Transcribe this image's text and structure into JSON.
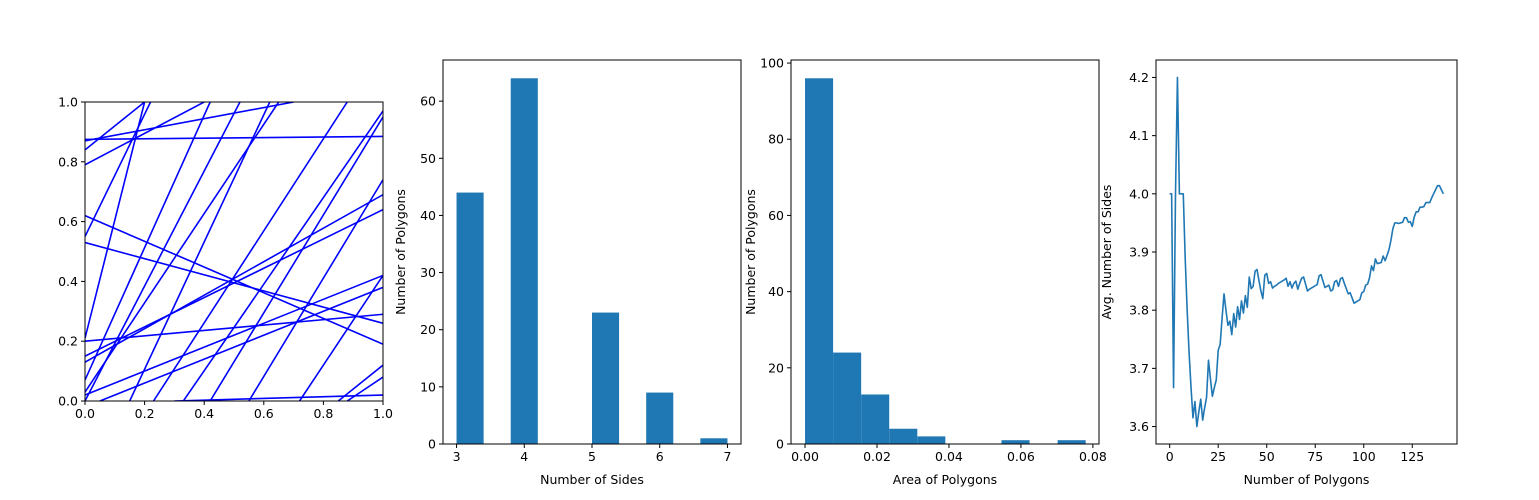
{
  "chart_data": [
    {
      "type": "line",
      "name": "random-lines-in-unit-square",
      "xlabel": "",
      "ylabel": "",
      "xlim": [
        0,
        1
      ],
      "ylim": [
        0,
        1
      ],
      "xticks": [
        "0.0",
        "0.2",
        "0.4",
        "0.6",
        "0.8",
        "1.0"
      ],
      "yticks": [
        "0.0",
        "0.2",
        "0.4",
        "0.6",
        "0.8",
        "1.0"
      ],
      "line_color": "#0000ff",
      "segments": [
        [
          [
            0.0,
            0.875
          ],
          [
            1.0,
            0.885
          ]
        ],
        [
          [
            0.0,
            0.79
          ],
          [
            0.4,
            1.0
          ]
        ],
        [
          [
            0.0,
            0.84
          ],
          [
            0.2,
            1.0
          ]
        ],
        [
          [
            0.0,
            0.87
          ],
          [
            0.7,
            1.0
          ]
        ],
        [
          [
            0.0,
            0.62
          ],
          [
            1.0,
            0.19
          ]
        ],
        [
          [
            0.0,
            0.53
          ],
          [
            1.0,
            0.26
          ]
        ],
        [
          [
            0.0,
            0.55
          ],
          [
            0.22,
            1.0
          ]
        ],
        [
          [
            0.0,
            0.21
          ],
          [
            0.2,
            1.0
          ]
        ],
        [
          [
            0.0,
            0.2
          ],
          [
            1.0,
            0.29
          ]
        ],
        [
          [
            0.0,
            0.13
          ],
          [
            1.0,
            0.69
          ]
        ],
        [
          [
            0.0,
            0.15
          ],
          [
            1.0,
            0.64
          ]
        ],
        [
          [
            0.0,
            0.07
          ],
          [
            0.42,
            1.0
          ]
        ],
        [
          [
            0.0,
            0.03
          ],
          [
            0.65,
            1.0
          ]
        ],
        [
          [
            0.0,
            0.0
          ],
          [
            0.52,
            1.0
          ]
        ],
        [
          [
            0.0,
            0.02
          ],
          [
            1.0,
            0.42
          ]
        ],
        [
          [
            0.05,
            0.0
          ],
          [
            1.0,
            0.38
          ]
        ],
        [
          [
            0.15,
            0.0
          ],
          [
            0.62,
            1.0
          ]
        ],
        [
          [
            0.23,
            0.0
          ],
          [
            0.88,
            1.0
          ]
        ],
        [
          [
            0.33,
            0.0
          ],
          [
            1.0,
            0.97
          ]
        ],
        [
          [
            0.42,
            0.0
          ],
          [
            1.0,
            0.95
          ]
        ],
        [
          [
            0.55,
            0.0
          ],
          [
            1.0,
            0.74
          ]
        ],
        [
          [
            0.72,
            0.0
          ],
          [
            1.0,
            0.42
          ]
        ],
        [
          [
            0.85,
            0.0
          ],
          [
            1.0,
            0.12
          ]
        ],
        [
          [
            0.3,
            0.0
          ],
          [
            1.0,
            0.02
          ]
        ],
        [
          [
            0.88,
            0.0
          ],
          [
            1.0,
            0.08
          ]
        ]
      ]
    },
    {
      "type": "bar",
      "name": "sides-histogram",
      "xlabel": "Number of Sides",
      "ylabel": "Number of Polygons",
      "xlim": [
        2.8,
        7.2
      ],
      "ylim": [
        0,
        67.2
      ],
      "xticks": [
        "3",
        "4",
        "5",
        "6",
        "7"
      ],
      "yticks": [
        "0",
        "10",
        "20",
        "30",
        "40",
        "50",
        "60"
      ],
      "bar_color": "#1f77b4",
      "bins": [
        3.0,
        3.4,
        3.8,
        4.2,
        4.6,
        5.0,
        5.4,
        5.8,
        6.2,
        6.6,
        7.0
      ],
      "counts": [
        44,
        0,
        64,
        0,
        0,
        23,
        0,
        9,
        0,
        1
      ]
    },
    {
      "type": "bar",
      "name": "area-histogram",
      "xlabel": "Area of Polygons",
      "ylabel": "Number of Polygons",
      "xlim": [
        -0.0039,
        0.0817
      ],
      "ylim": [
        0,
        100.8
      ],
      "xticks": [
        "0.00",
        "0.02",
        "0.04",
        "0.06",
        "0.08"
      ],
      "yticks": [
        "0",
        "20",
        "40",
        "60",
        "80",
        "100"
      ],
      "bar_color": "#1f77b4",
      "bins": [
        0.0,
        0.0078,
        0.0156,
        0.0234,
        0.0312,
        0.039,
        0.0468,
        0.0546,
        0.0624,
        0.0702,
        0.078
      ],
      "counts": [
        96,
        24,
        13,
        4,
        2,
        0,
        0,
        1,
        0,
        1
      ]
    },
    {
      "type": "line",
      "name": "avg-sides-vs-polygons",
      "xlabel": "Number of Polygons",
      "ylabel": "Avg. Number of Sides",
      "xlim": [
        -7.05,
        148.05
      ],
      "ylim": [
        3.57,
        4.23
      ],
      "xticks": [
        "0",
        "25",
        "50",
        "75",
        "100",
        "125"
      ],
      "yticks": [
        "3.6",
        "3.7",
        "3.8",
        "3.9",
        "4.0",
        "4.1",
        "4.2"
      ],
      "line_color": "#1f77b4",
      "points": [
        [
          0,
          4.0
        ],
        [
          1,
          4.0
        ],
        [
          2,
          3.667
        ],
        [
          3,
          4.0
        ],
        [
          4,
          4.2
        ],
        [
          5,
          4.0
        ],
        [
          6,
          4.0
        ],
        [
          7,
          4.0
        ],
        [
          8,
          3.889
        ],
        [
          9,
          3.8
        ],
        [
          10,
          3.727
        ],
        [
          11,
          3.667
        ],
        [
          12,
          3.615
        ],
        [
          13,
          3.643
        ],
        [
          14,
          3.6
        ],
        [
          15,
          3.625
        ],
        [
          16,
          3.647
        ],
        [
          17,
          3.611
        ],
        [
          18,
          3.632
        ],
        [
          19,
          3.65
        ],
        [
          20,
          3.714
        ],
        [
          21,
          3.682
        ],
        [
          22,
          3.652
        ],
        [
          23,
          3.667
        ],
        [
          24,
          3.68
        ],
        [
          25,
          3.731
        ],
        [
          26,
          3.741
        ],
        [
          27,
          3.786
        ],
        [
          28,
          3.828
        ],
        [
          29,
          3.8
        ],
        [
          30,
          3.774
        ],
        [
          31,
          3.781
        ],
        [
          32,
          3.758
        ],
        [
          33,
          3.794
        ],
        [
          34,
          3.771
        ],
        [
          35,
          3.806
        ],
        [
          36,
          3.784
        ],
        [
          37,
          3.816
        ],
        [
          38,
          3.795
        ],
        [
          39,
          3.825
        ],
        [
          40,
          3.805
        ],
        [
          41,
          3.857
        ],
        [
          42,
          3.837
        ],
        [
          43,
          3.841
        ],
        [
          44,
          3.867
        ],
        [
          45,
          3.87
        ],
        [
          46,
          3.851
        ],
        [
          47,
          3.833
        ],
        [
          48,
          3.82
        ],
        [
          49,
          3.86
        ],
        [
          50,
          3.863
        ],
        [
          51,
          3.846
        ],
        [
          52,
          3.849
        ],
        [
          53,
          3.838
        ],
        [
          54,
          3.841
        ],
        [
          55,
          3.843
        ],
        [
          56,
          3.846
        ],
        [
          57,
          3.848
        ],
        [
          58,
          3.85
        ],
        [
          59,
          3.852
        ],
        [
          60,
          3.855
        ],
        [
          61,
          3.841
        ],
        [
          62,
          3.849
        ],
        [
          63,
          3.838
        ],
        [
          64,
          3.846
        ],
        [
          65,
          3.85
        ],
        [
          66,
          3.836
        ],
        [
          67,
          3.846
        ],
        [
          68,
          3.855
        ],
        [
          69,
          3.857
        ],
        [
          70,
          3.845
        ],
        [
          71,
          3.833
        ],
        [
          72,
          3.836
        ],
        [
          73,
          3.838
        ],
        [
          74,
          3.84
        ],
        [
          75,
          3.842
        ],
        [
          76,
          3.844
        ],
        [
          77,
          3.859
        ],
        [
          78,
          3.861
        ],
        [
          79,
          3.85
        ],
        [
          80,
          3.839
        ],
        [
          81,
          3.841
        ],
        [
          82,
          3.843
        ],
        [
          83,
          3.833
        ],
        [
          84,
          3.835
        ],
        [
          85,
          3.849
        ],
        [
          86,
          3.851
        ],
        [
          87,
          3.841
        ],
        [
          88,
          3.854
        ],
        [
          89,
          3.856
        ],
        [
          90,
          3.846
        ],
        [
          91,
          3.837
        ],
        [
          92,
          3.828
        ],
        [
          93,
          3.83
        ],
        [
          94,
          3.821
        ],
        [
          95,
          3.812
        ],
        [
          96,
          3.814
        ],
        [
          97,
          3.816
        ],
        [
          98,
          3.818
        ],
        [
          99,
          3.83
        ],
        [
          100,
          3.832
        ],
        [
          101,
          3.843
        ],
        [
          102,
          3.845
        ],
        [
          103,
          3.856
        ],
        [
          104,
          3.876
        ],
        [
          105,
          3.868
        ],
        [
          106,
          3.888
        ],
        [
          107,
          3.88
        ],
        [
          108,
          3.881
        ],
        [
          109,
          3.882
        ],
        [
          110,
          3.893
        ],
        [
          111,
          3.885
        ],
        [
          112,
          3.894
        ],
        [
          113,
          3.904
        ],
        [
          114,
          3.92
        ],
        [
          115,
          3.94
        ],
        [
          116,
          3.95
        ],
        [
          117,
          3.95
        ],
        [
          118,
          3.949
        ],
        [
          119,
          3.95
        ],
        [
          120,
          3.951
        ],
        [
          121,
          3.959
        ],
        [
          122,
          3.959
        ],
        [
          123,
          3.951
        ],
        [
          124,
          3.952
        ],
        [
          125,
          3.944
        ],
        [
          126,
          3.96
        ],
        [
          127,
          3.969
        ],
        [
          128,
          3.969
        ],
        [
          129,
          3.977
        ],
        [
          130,
          3.977
        ],
        [
          131,
          3.978
        ],
        [
          132,
          3.985
        ],
        [
          133,
          3.985
        ],
        [
          134,
          3.985
        ],
        [
          135,
          3.993
        ],
        [
          136,
          4.0
        ],
        [
          137,
          4.007
        ],
        [
          138,
          4.014
        ],
        [
          139,
          4.014
        ],
        [
          140,
          4.007
        ],
        [
          141,
          4.0
        ]
      ]
    }
  ]
}
